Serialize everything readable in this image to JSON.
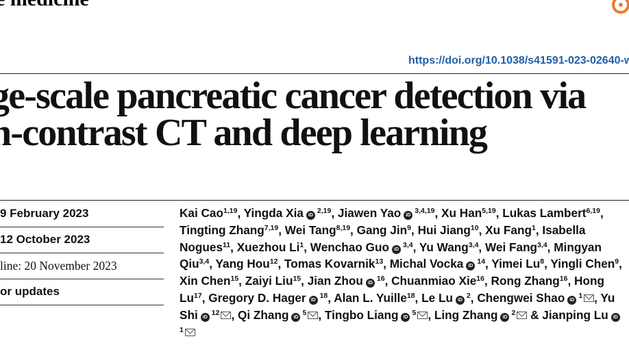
{
  "journal": {
    "name": "e medicine"
  },
  "doi": "https://doi.org/10.1038/s41591-023-02640-w",
  "title": {
    "line1": "ge-scale pancreatic cancer detection via",
    "line2": "n-contrast CT and deep learning"
  },
  "dates": [
    "9 February 2023",
    "12 October 2023",
    "line: 20 November 2023",
    "or updates"
  ],
  "authors": [
    {
      "name": "Kai Cao",
      "sup": "1,19",
      "orcid": false,
      "mail": false,
      "sep": ","
    },
    {
      "name": "Yingda Xia",
      "sup": "2,19",
      "orcid": true,
      "mail": false,
      "sep": ","
    },
    {
      "name": "Jiawen Yao",
      "sup": "3,4,19",
      "orcid": true,
      "mail": false,
      "sep": ","
    },
    {
      "name": "Xu Han",
      "sup": "5,19",
      "orcid": false,
      "mail": false,
      "sep": ","
    },
    {
      "name": "Lukas Lambert",
      "sup": "6,19",
      "orcid": false,
      "mail": false,
      "sep": ","
    },
    {
      "name": "Tingting Zhang",
      "sup": "7,19",
      "orcid": false,
      "mail": false,
      "sep": ","
    },
    {
      "name": "Wei Tang",
      "sup": "8,19",
      "orcid": false,
      "mail": false,
      "sep": ","
    },
    {
      "name": "Gang Jin",
      "sup": "9",
      "orcid": false,
      "mail": false,
      "sep": ","
    },
    {
      "name": "Hui Jiang",
      "sup": "10",
      "orcid": false,
      "mail": false,
      "sep": ","
    },
    {
      "name": "Xu Fang",
      "sup": "1",
      "orcid": false,
      "mail": false,
      "sep": ","
    },
    {
      "name": "Isabella Nogues",
      "sup": "11",
      "orcid": false,
      "mail": false,
      "sep": ","
    },
    {
      "name": "Xuezhou Li",
      "sup": "1",
      "orcid": false,
      "mail": false,
      "sep": ","
    },
    {
      "name": "Wenchao Guo",
      "sup": "3,4",
      "orcid": true,
      "mail": false,
      "sep": ","
    },
    {
      "name": "Yu Wang",
      "sup": "3,4",
      "orcid": false,
      "mail": false,
      "sep": ","
    },
    {
      "name": "Wei Fang",
      "sup": "3,4",
      "orcid": false,
      "mail": false,
      "sep": ","
    },
    {
      "name": "Mingyan Qiu",
      "sup": "3,4",
      "orcid": false,
      "mail": false,
      "sep": ","
    },
    {
      "name": "Yang Hou",
      "sup": "12",
      "orcid": false,
      "mail": false,
      "sep": ","
    },
    {
      "name": "Tomas Kovarnik",
      "sup": "13",
      "orcid": false,
      "mail": false,
      "sep": ","
    },
    {
      "name": "Michal Vocka",
      "sup": "14",
      "orcid": true,
      "mail": false,
      "sep": ","
    },
    {
      "name": "Yimei Lu",
      "sup": "8",
      "orcid": false,
      "mail": false,
      "sep": ","
    },
    {
      "name": "Yingli Chen",
      "sup": "9",
      "orcid": false,
      "mail": false,
      "sep": ","
    },
    {
      "name": "Xin Chen",
      "sup": "15",
      "orcid": false,
      "mail": false,
      "sep": ","
    },
    {
      "name": "Zaiyi Liu",
      "sup": "15",
      "orcid": false,
      "mail": false,
      "sep": ","
    },
    {
      "name": "Jian Zhou",
      "sup": "16",
      "orcid": true,
      "mail": false,
      "sep": ","
    },
    {
      "name": "Chuanmiao Xie",
      "sup": "16",
      "orcid": false,
      "mail": false,
      "sep": ","
    },
    {
      "name": "Rong Zhang",
      "sup": "16",
      "orcid": false,
      "mail": false,
      "sep": ","
    },
    {
      "name": "Hong Lu",
      "sup": "17",
      "orcid": false,
      "mail": false,
      "sep": ","
    },
    {
      "name": "Gregory D. Hager",
      "sup": "18",
      "orcid": true,
      "mail": false,
      "sep": ","
    },
    {
      "name": "Alan L. Yuille",
      "sup": "18",
      "orcid": false,
      "mail": false,
      "sep": ","
    },
    {
      "name": "Le Lu",
      "sup": "2",
      "orcid": true,
      "mail": false,
      "sep": ","
    },
    {
      "name": "Chengwei Shao",
      "sup": "1",
      "orcid": true,
      "mail": true,
      "sep": ","
    },
    {
      "name": "Yu Shi",
      "sup": "12",
      "orcid": true,
      "mail": true,
      "sep": ","
    },
    {
      "name": "Qi Zhang",
      "sup": "5",
      "orcid": true,
      "mail": true,
      "sep": ","
    },
    {
      "name": "Tingbo Liang",
      "sup": "5",
      "orcid": true,
      "mail": true,
      "sep": ","
    },
    {
      "name": "Ling Zhang",
      "sup": "2",
      "orcid": true,
      "mail": true,
      "sep": " &"
    },
    {
      "name": "Jianping Lu",
      "sup": "1",
      "orcid": true,
      "mail": true,
      "sep": ""
    }
  ],
  "icons": {
    "orcid": "orcid-icon",
    "mail": "mail-icon",
    "open-access": "open-access-icon"
  }
}
